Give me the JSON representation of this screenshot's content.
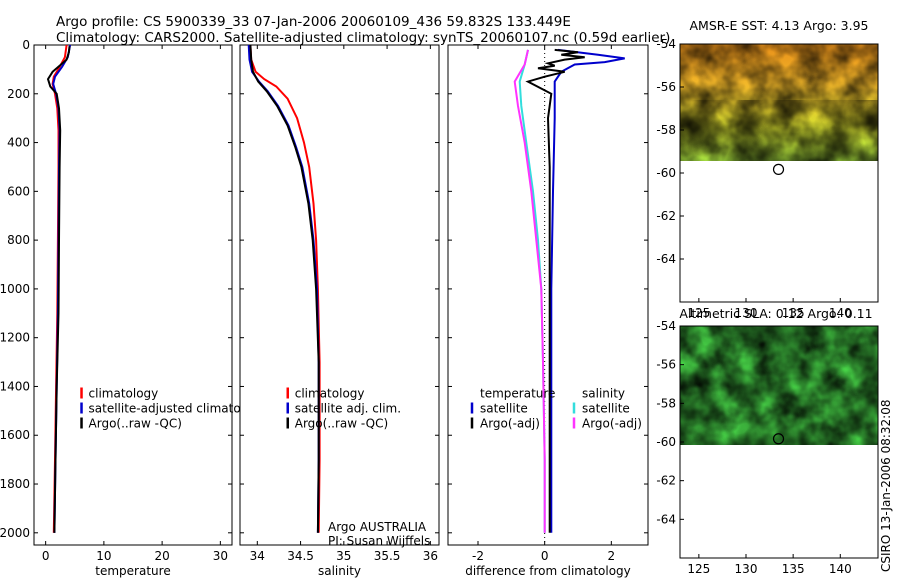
{
  "title": {
    "line1": "Argo profile: CS 5900339_33 07-Jan-2006 20060109_436 59.832S 133.449E",
    "line2": "Climatology: CARS2000. Satellite-adjusted climatology: synTS_20060107.nc (0.59d earlier)"
  },
  "credit": "CSIRO 13-Jan-2006 08:32:08",
  "colors": {
    "red": "#ff0000",
    "blue": "#0000cc",
    "black": "#000000",
    "cyan": "#33dddd",
    "magenta": "#ff33ff",
    "grid_dot": "#000000"
  },
  "chart_data": [
    {
      "type": "line",
      "id": "temperature",
      "xlabel": "temperature",
      "xlim": [
        -2,
        32
      ],
      "ylim": [
        2050,
        0
      ],
      "xticks": [
        0,
        10,
        20,
        30
      ],
      "yticks": [
        0,
        200,
        400,
        600,
        800,
        1000,
        1200,
        1400,
        1600,
        1800,
        2000
      ],
      "legend": {
        "placement": "lower-right",
        "entries": [
          {
            "label": "climatology",
            "color": "#ff0000"
          },
          {
            "label": "satellite-adjusted climatology",
            "color": "#0000cc"
          },
          {
            "label": "Argo(..raw -QC)",
            "color": "#000000"
          }
        ]
      },
      "series": [
        {
          "name": "climatology",
          "color": "#ff0000",
          "points": [
            [
              3.6,
              0
            ],
            [
              3.3,
              50
            ],
            [
              2.4,
              90
            ],
            [
              1.4,
              130
            ],
            [
              1.2,
              160
            ],
            [
              1.6,
              200
            ],
            [
              2.0,
              260
            ],
            [
              2.2,
              350
            ],
            [
              2.2,
              500
            ],
            [
              2.1,
              800
            ],
            [
              2.0,
              1100
            ],
            [
              1.8,
              1400
            ],
            [
              1.6,
              1700
            ],
            [
              1.4,
              2000
            ]
          ]
        },
        {
          "name": "satellite-adjusted climatology",
          "color": "#0000cc",
          "points": [
            [
              4.2,
              0
            ],
            [
              3.8,
              50
            ],
            [
              2.8,
              90
            ],
            [
              1.6,
              130
            ],
            [
              1.3,
              160
            ],
            [
              1.8,
              200
            ],
            [
              2.2,
              260
            ],
            [
              2.4,
              350
            ],
            [
              2.3,
              500
            ],
            [
              2.2,
              800
            ],
            [
              2.1,
              1100
            ],
            [
              1.9,
              1400
            ],
            [
              1.7,
              1700
            ],
            [
              1.5,
              2000
            ]
          ]
        },
        {
          "name": "Argo",
          "color": "#000000",
          "points": [
            [
              4.1,
              5
            ],
            [
              4.0,
              30
            ],
            [
              3.6,
              60
            ],
            [
              2.4,
              85
            ],
            [
              1.2,
              110
            ],
            [
              0.4,
              140
            ],
            [
              0.8,
              170
            ],
            [
              1.9,
              200
            ],
            [
              2.3,
              260
            ],
            [
              2.5,
              350
            ],
            [
              2.4,
              500
            ],
            [
              2.3,
              800
            ],
            [
              2.2,
              1100
            ],
            [
              1.9,
              1400
            ],
            [
              1.7,
              1700
            ],
            [
              1.5,
              2000
            ]
          ]
        }
      ]
    },
    {
      "type": "line",
      "id": "salinity",
      "xlabel": "salinity",
      "xlim": [
        33.8,
        36.1
      ],
      "ylim": [
        2050,
        0
      ],
      "xticks": [
        34,
        34.5,
        35,
        35.5,
        36
      ],
      "xtick_labels": [
        "34",
        "34.5",
        "35",
        "35.5",
        "36"
      ],
      "legend": {
        "placement": "lower-right",
        "entries": [
          {
            "label": "climatology",
            "color": "#ff0000"
          },
          {
            "label": "satellite adj. clim.",
            "color": "#0000cc"
          },
          {
            "label": "Argo(..raw -QC)",
            "color": "#000000"
          }
        ]
      },
      "annotation": [
        "Argo AUSTRALIA",
        "PI: Susan Wijffels"
      ],
      "series": [
        {
          "name": "climatology",
          "color": "#ff0000",
          "points": [
            [
              33.92,
              0
            ],
            [
              33.93,
              60
            ],
            [
              33.98,
              110
            ],
            [
              34.08,
              140
            ],
            [
              34.22,
              170
            ],
            [
              34.35,
              220
            ],
            [
              34.46,
              300
            ],
            [
              34.54,
              400
            ],
            [
              34.6,
              500
            ],
            [
              34.65,
              650
            ],
            [
              34.68,
              800
            ],
            [
              34.7,
              1000
            ],
            [
              34.72,
              1300
            ],
            [
              34.72,
              1700
            ],
            [
              34.71,
              2000
            ]
          ]
        },
        {
          "name": "satellite adj. clim.",
          "color": "#0000cc",
          "points": [
            [
              33.9,
              0
            ],
            [
              33.91,
              60
            ],
            [
              33.94,
              110
            ],
            [
              34.02,
              150
            ],
            [
              34.12,
              190
            ],
            [
              34.24,
              250
            ],
            [
              34.36,
              330
            ],
            [
              34.45,
              420
            ],
            [
              34.52,
              500
            ],
            [
              34.6,
              650
            ],
            [
              34.65,
              800
            ],
            [
              34.69,
              1000
            ],
            [
              34.71,
              1300
            ],
            [
              34.71,
              1700
            ],
            [
              34.7,
              2000
            ]
          ]
        },
        {
          "name": "Argo",
          "color": "#000000",
          "points": [
            [
              33.92,
              0
            ],
            [
              33.93,
              60
            ],
            [
              33.95,
              110
            ],
            [
              34.01,
              150
            ],
            [
              34.11,
              190
            ],
            [
              34.23,
              250
            ],
            [
              34.35,
              330
            ],
            [
              34.44,
              420
            ],
            [
              34.51,
              500
            ],
            [
              34.59,
              650
            ],
            [
              34.64,
              800
            ],
            [
              34.68,
              1000
            ],
            [
              34.71,
              1300
            ],
            [
              34.71,
              1700
            ],
            [
              34.7,
              2000
            ]
          ]
        }
      ]
    },
    {
      "type": "line",
      "id": "difference",
      "xlabel": "difference from climatology",
      "xlim": [
        -2.9,
        3.1
      ],
      "ylim": [
        2050,
        0
      ],
      "xticks": [
        -2,
        0,
        2
      ],
      "legend": {
        "placement": "lower-right",
        "columns": [
          {
            "title": "temperature",
            "entries": [
              {
                "label": "satellite",
                "color": "#0000cc"
              },
              {
                "label": "Argo(-adj)",
                "color": "#000000"
              }
            ]
          },
          {
            "title": "salinity",
            "entries": [
              {
                "label": "satellite",
                "color": "#33dddd"
              },
              {
                "label": "Argo(-adj)",
                "color": "#ff33ff"
              }
            ]
          }
        ]
      },
      "series": [
        {
          "name": "temperature satellite",
          "color": "#0000cc",
          "points": [
            [
              0.4,
              20
            ],
            [
              1.6,
              40
            ],
            [
              2.4,
              55
            ],
            [
              1.8,
              70
            ],
            [
              0.9,
              80
            ],
            [
              0.5,
              110
            ],
            [
              0.3,
              150
            ],
            [
              0.3,
              200
            ],
            [
              0.3,
              300
            ],
            [
              0.25,
              600
            ],
            [
              0.2,
              1000
            ],
            [
              0.2,
              1400
            ],
            [
              0.2,
              2000
            ]
          ]
        },
        {
          "name": "temperature Argo(-adj)",
          "color": "#000000",
          "points": [
            [
              0.3,
              20
            ],
            [
              1.0,
              30
            ],
            [
              0.5,
              40
            ],
            [
              1.2,
              50
            ],
            [
              0.6,
              60
            ],
            [
              0.1,
              75
            ],
            [
              0.3,
              85
            ],
            [
              -0.2,
              95
            ],
            [
              0.6,
              110
            ],
            [
              0.0,
              130
            ],
            [
              -0.5,
              150
            ],
            [
              0.2,
              200
            ],
            [
              0.1,
              300
            ],
            [
              0.15,
              500
            ],
            [
              0.15,
              800
            ],
            [
              0.15,
              1200
            ],
            [
              0.15,
              2000
            ]
          ]
        },
        {
          "name": "salinity satellite",
          "color": "#33dddd",
          "points": [
            [
              -0.5,
              20
            ],
            [
              -0.6,
              80
            ],
            [
              -0.75,
              150
            ],
            [
              -0.7,
              250
            ],
            [
              -0.55,
              400
            ],
            [
              -0.35,
              600
            ],
            [
              -0.2,
              800
            ],
            [
              -0.1,
              1000
            ],
            [
              -0.05,
              1300
            ],
            [
              0.0,
              1700
            ],
            [
              0.0,
              2000
            ]
          ]
        },
        {
          "name": "salinity Argo(-adj)",
          "color": "#ff33ff",
          "points": [
            [
              -0.5,
              20
            ],
            [
              -0.6,
              80
            ],
            [
              -0.9,
              150
            ],
            [
              -0.8,
              250
            ],
            [
              -0.6,
              400
            ],
            [
              -0.4,
              600
            ],
            [
              -0.25,
              800
            ],
            [
              -0.1,
              1000
            ],
            [
              -0.05,
              1300
            ],
            [
              0.0,
              1700
            ],
            [
              0.0,
              2000
            ]
          ]
        }
      ]
    },
    {
      "type": "heatmap",
      "id": "sst-map",
      "title": "AMSR-E SST: 4.13  Argo: 3.95",
      "xlim": [
        123,
        144
      ],
      "ylim": [
        -54,
        -66
      ],
      "xticks": [
        125,
        130,
        135,
        140
      ],
      "yticks": [
        -54,
        -56,
        -58,
        -60,
        -62,
        -64
      ],
      "data_ylim": [
        -54,
        -60
      ],
      "marker": {
        "lon": 133.449,
        "lat": -59.832
      }
    },
    {
      "type": "heatmap",
      "id": "sla-map",
      "title": "Altimetric SLA: 0.12  Argo: 0.11",
      "xlim": [
        123,
        144
      ],
      "ylim": [
        -54,
        -66
      ],
      "xticks": [
        125,
        130,
        135,
        140
      ],
      "yticks": [
        -54,
        -56,
        -58,
        -60,
        -62,
        -64
      ],
      "data_ylim": [
        -54,
        -60
      ],
      "marker": {
        "lon": 133.449,
        "lat": -59.832
      }
    }
  ]
}
